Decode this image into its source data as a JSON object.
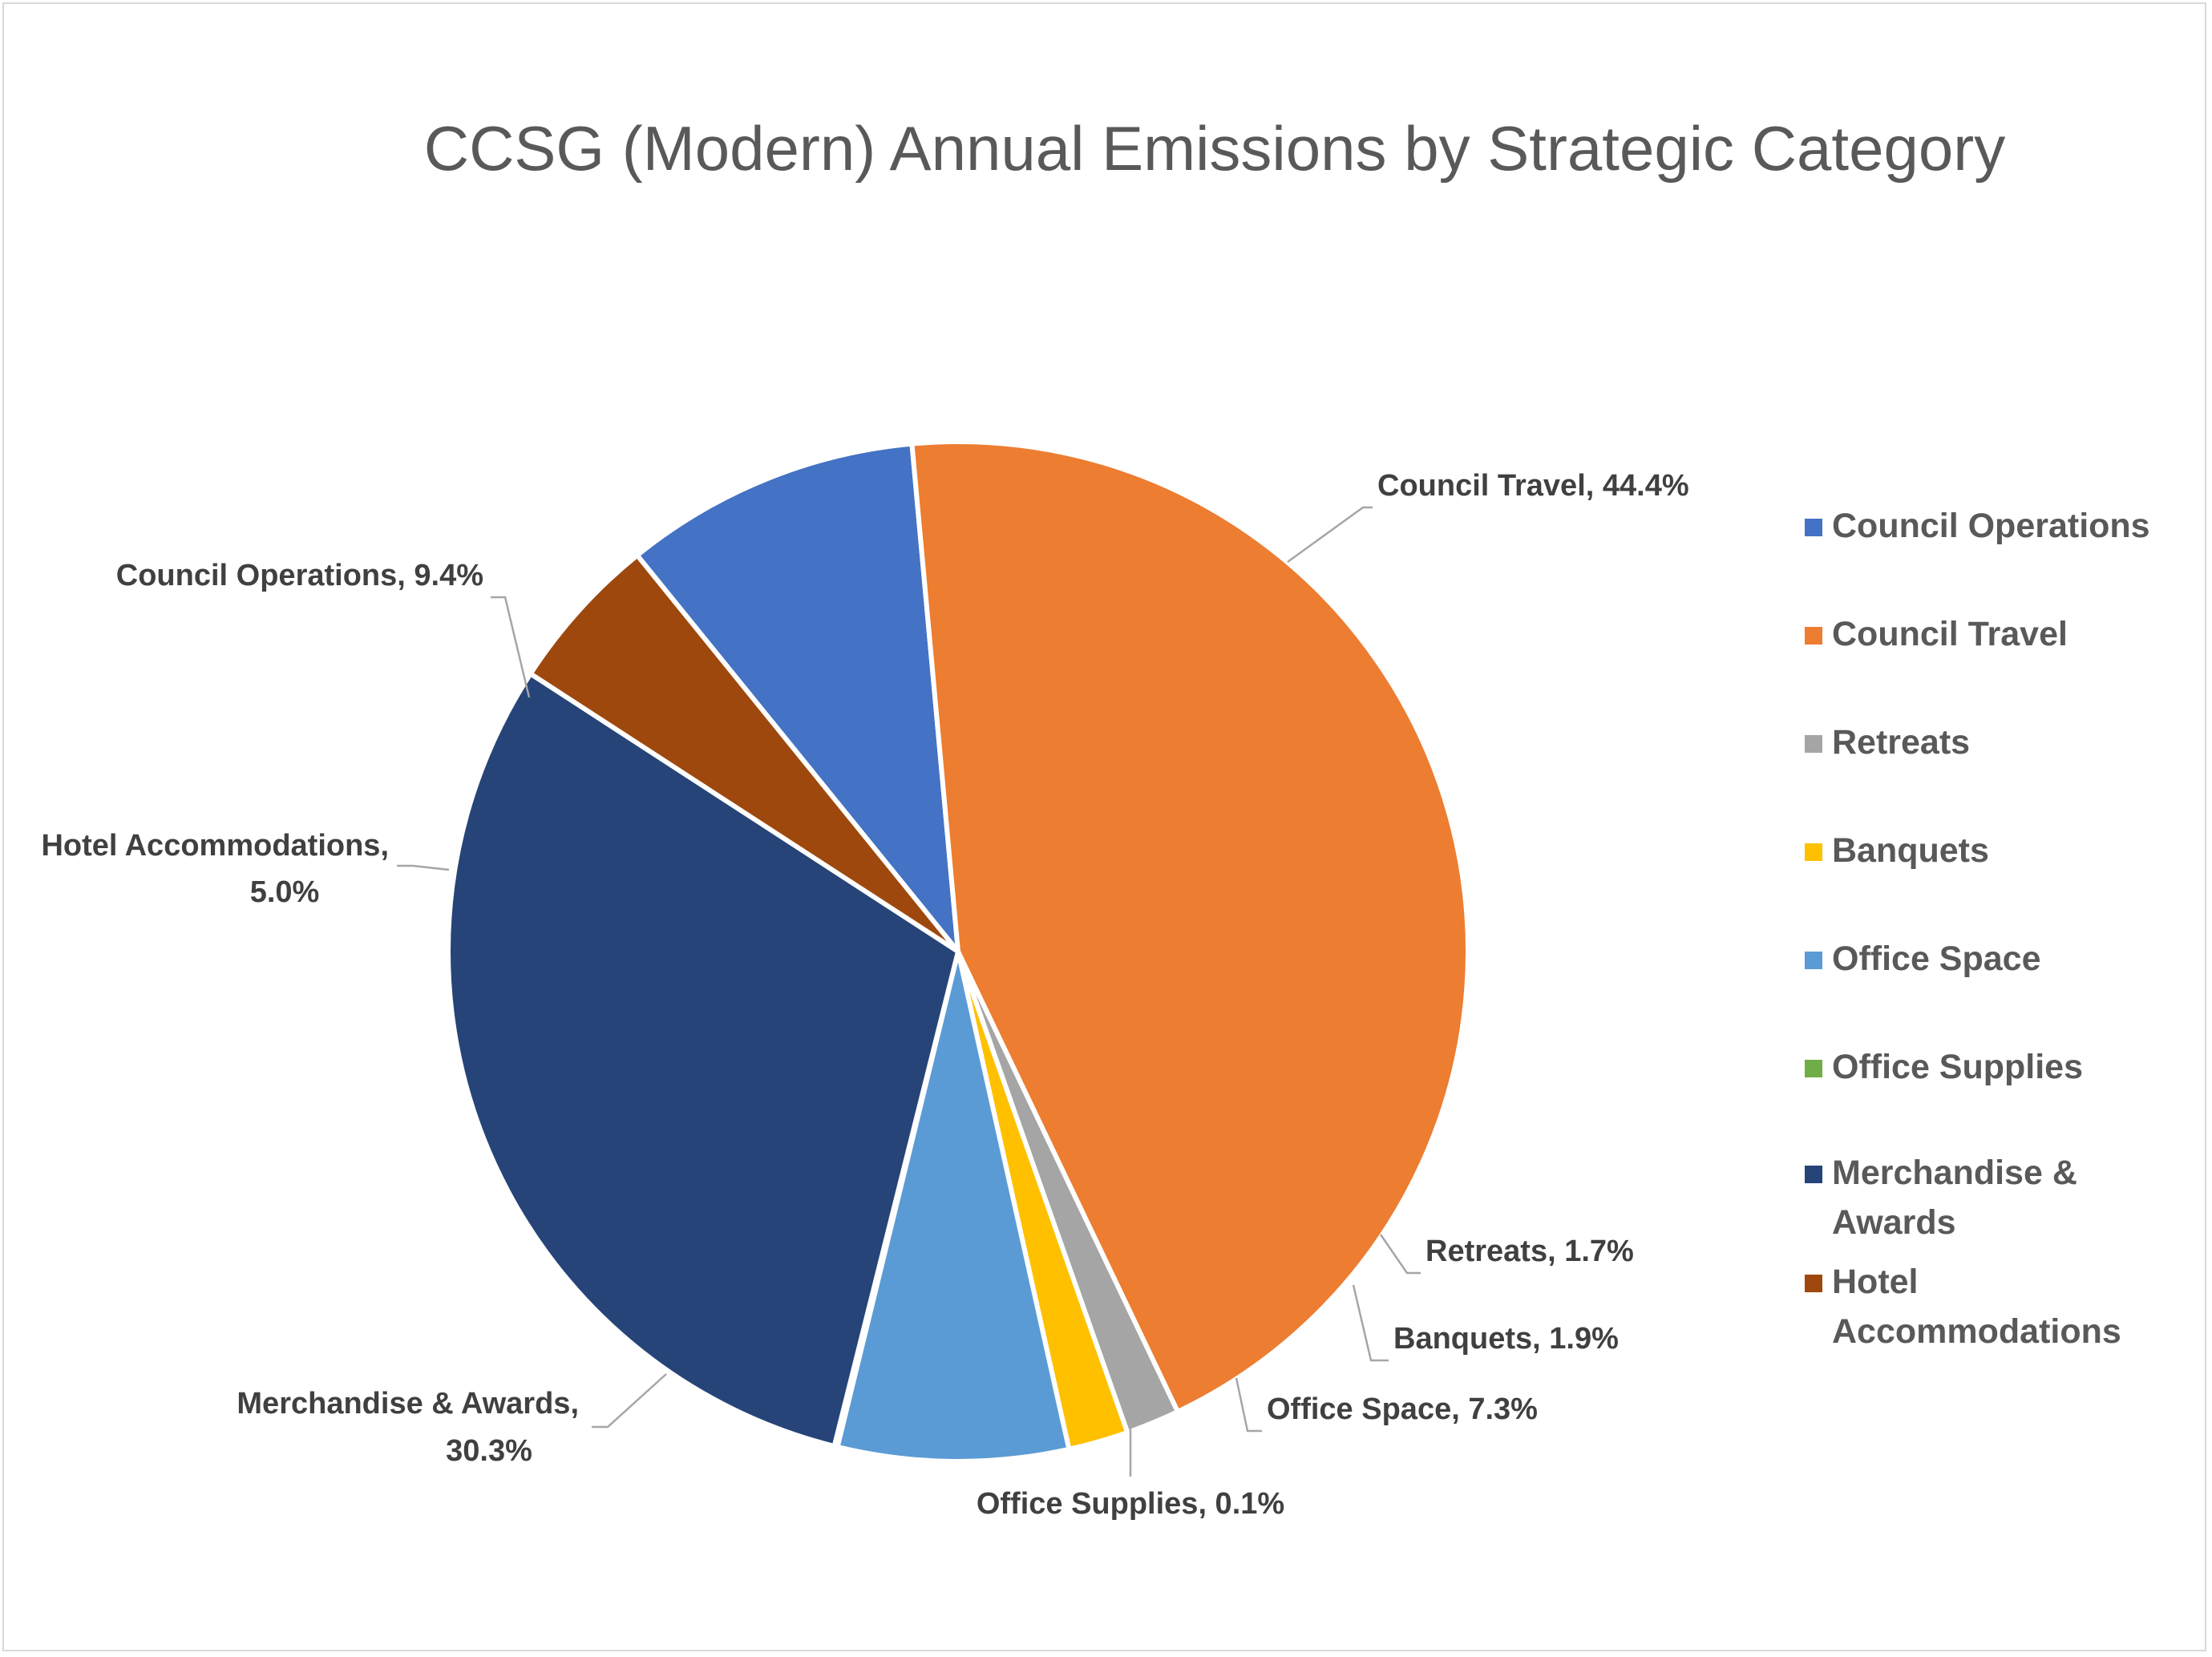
{
  "chart_data": {
    "type": "pie",
    "title": "CCSG (Modern) Annual Emissions by Strategic Category",
    "slices": [
      {
        "name": "Council Operations",
        "value": 9.4,
        "label": "Council Operations, 9.4%",
        "color": "#4472c4"
      },
      {
        "name": "Council Travel",
        "value": 44.4,
        "label": "Council Travel, 44.4%",
        "color": "#ed7d31"
      },
      {
        "name": "Retreats",
        "value": 1.7,
        "label": "Retreats, 1.7%",
        "color": "#a5a5a5"
      },
      {
        "name": "Banquets",
        "value": 1.9,
        "label": "Banquets, 1.9%",
        "color": "#ffc000"
      },
      {
        "name": "Office Space",
        "value": 7.3,
        "label": "Office Space, 7.3%",
        "color": "#5b9bd5"
      },
      {
        "name": "Office Supplies",
        "value": 0.1,
        "label": "Office Supplies, 0.1%",
        "color": "#70ad47"
      },
      {
        "name": "Merchandise & Awards",
        "value": 30.3,
        "label": "Merchandise & Awards, 30.3%",
        "color": "#264478"
      },
      {
        "name": "Hotel Accommodations",
        "value": 5.0,
        "label": "Hotel Accommodations, 5.0%",
        "color": "#9e480e"
      }
    ],
    "legend": {
      "position": "right",
      "items": [
        {
          "text": "Council Operations",
          "color": "#4472c4"
        },
        {
          "text": "Council Travel",
          "color": "#ed7d31"
        },
        {
          "text": "Retreats",
          "color": "#a5a5a5"
        },
        {
          "text": "Banquets",
          "color": "#ffc000"
        },
        {
          "text": "Office Space",
          "color": "#5b9bd5"
        },
        {
          "text": "Office Supplies",
          "color": "#70ad47"
        },
        {
          "text": "Merchandise & Awards",
          "color": "#264478"
        },
        {
          "text": "Hotel Accommodations",
          "color": "#9e480e"
        }
      ]
    }
  }
}
